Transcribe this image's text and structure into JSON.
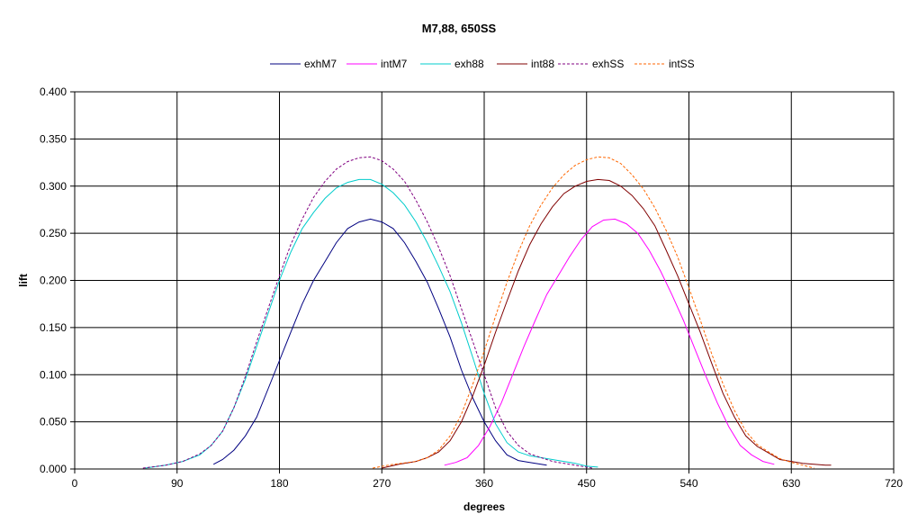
{
  "chart_data": {
    "type": "line",
    "title": "M7,88, 650SS",
    "xlabel": "degrees",
    "ylabel": "lift",
    "xlim": [
      0,
      720
    ],
    "ylim": [
      0,
      0.4
    ],
    "xticks": [
      0,
      90,
      180,
      270,
      360,
      450,
      540,
      630,
      720
    ],
    "xtick_labels": [
      "0",
      "90",
      "180",
      "270",
      "360",
      "450",
      "540",
      "630",
      "720"
    ],
    "yticks": [
      0,
      0.05,
      0.1,
      0.15,
      0.2,
      0.25,
      0.3,
      0.35,
      0.4
    ],
    "ytick_labels": [
      "0.000",
      "0.050",
      "0.100",
      "0.150",
      "0.200",
      "0.250",
      "0.300",
      "0.350",
      "0.400"
    ],
    "grid": true,
    "legend_position": "top",
    "series": [
      {
        "name": "exhM7",
        "color": "#000080",
        "dash": "solid",
        "points": [
          [
            122,
            0.005
          ],
          [
            130,
            0.01
          ],
          [
            140,
            0.02
          ],
          [
            150,
            0.035
          ],
          [
            160,
            0.055
          ],
          [
            170,
            0.085
          ],
          [
            180,
            0.115
          ],
          [
            190,
            0.145
          ],
          [
            200,
            0.175
          ],
          [
            210,
            0.2
          ],
          [
            220,
            0.22
          ],
          [
            230,
            0.24
          ],
          [
            240,
            0.255
          ],
          [
            250,
            0.262
          ],
          [
            260,
            0.265
          ],
          [
            270,
            0.262
          ],
          [
            280,
            0.255
          ],
          [
            290,
            0.24
          ],
          [
            300,
            0.22
          ],
          [
            310,
            0.198
          ],
          [
            320,
            0.17
          ],
          [
            330,
            0.14
          ],
          [
            340,
            0.105
          ],
          [
            350,
            0.075
          ],
          [
            360,
            0.05
          ],
          [
            370,
            0.03
          ],
          [
            380,
            0.015
          ],
          [
            390,
            0.009
          ],
          [
            400,
            0.007
          ],
          [
            410,
            0.005
          ],
          [
            415,
            0.004
          ]
        ]
      },
      {
        "name": "intM7",
        "color": "#FF00FF",
        "dash": "solid",
        "points": [
          [
            325,
            0.004
          ],
          [
            335,
            0.007
          ],
          [
            345,
            0.012
          ],
          [
            355,
            0.025
          ],
          [
            365,
            0.045
          ],
          [
            375,
            0.07
          ],
          [
            385,
            0.1
          ],
          [
            395,
            0.13
          ],
          [
            405,
            0.158
          ],
          [
            415,
            0.185
          ],
          [
            425,
            0.205
          ],
          [
            435,
            0.225
          ],
          [
            445,
            0.243
          ],
          [
            455,
            0.257
          ],
          [
            465,
            0.264
          ],
          [
            475,
            0.265
          ],
          [
            485,
            0.26
          ],
          [
            495,
            0.25
          ],
          [
            505,
            0.232
          ],
          [
            515,
            0.21
          ],
          [
            525,
            0.185
          ],
          [
            535,
            0.158
          ],
          [
            545,
            0.128
          ],
          [
            555,
            0.098
          ],
          [
            565,
            0.07
          ],
          [
            575,
            0.045
          ],
          [
            585,
            0.025
          ],
          [
            595,
            0.015
          ],
          [
            605,
            0.008
          ],
          [
            615,
            0.005
          ]
        ]
      },
      {
        "name": "exh88",
        "color": "#00CCCC",
        "dash": "solid",
        "points": [
          [
            62,
            0.001
          ],
          [
            80,
            0.004
          ],
          [
            95,
            0.008
          ],
          [
            110,
            0.015
          ],
          [
            120,
            0.025
          ],
          [
            130,
            0.04
          ],
          [
            140,
            0.065
          ],
          [
            150,
            0.095
          ],
          [
            160,
            0.13
          ],
          [
            170,
            0.165
          ],
          [
            180,
            0.2
          ],
          [
            190,
            0.23
          ],
          [
            200,
            0.255
          ],
          [
            210,
            0.272
          ],
          [
            220,
            0.287
          ],
          [
            230,
            0.298
          ],
          [
            240,
            0.304
          ],
          [
            250,
            0.307
          ],
          [
            260,
            0.307
          ],
          [
            270,
            0.302
          ],
          [
            280,
            0.293
          ],
          [
            290,
            0.28
          ],
          [
            300,
            0.262
          ],
          [
            310,
            0.24
          ],
          [
            320,
            0.215
          ],
          [
            330,
            0.188
          ],
          [
            340,
            0.155
          ],
          [
            350,
            0.118
          ],
          [
            360,
            0.08
          ],
          [
            370,
            0.048
          ],
          [
            380,
            0.028
          ],
          [
            390,
            0.018
          ],
          [
            400,
            0.014
          ],
          [
            410,
            0.012
          ],
          [
            420,
            0.01
          ],
          [
            430,
            0.008
          ],
          [
            440,
            0.006
          ],
          [
            450,
            0.003
          ],
          [
            460,
            0.002
          ]
        ]
      },
      {
        "name": "int88",
        "color": "#800000",
        "dash": "solid",
        "points": [
          [
            270,
            0.001
          ],
          [
            285,
            0.005
          ],
          [
            300,
            0.008
          ],
          [
            310,
            0.012
          ],
          [
            320,
            0.018
          ],
          [
            330,
            0.03
          ],
          [
            340,
            0.05
          ],
          [
            350,
            0.078
          ],
          [
            360,
            0.11
          ],
          [
            370,
            0.145
          ],
          [
            380,
            0.178
          ],
          [
            390,
            0.21
          ],
          [
            400,
            0.238
          ],
          [
            410,
            0.26
          ],
          [
            420,
            0.278
          ],
          [
            430,
            0.292
          ],
          [
            440,
            0.3
          ],
          [
            450,
            0.305
          ],
          [
            460,
            0.307
          ],
          [
            470,
            0.306
          ],
          [
            480,
            0.3
          ],
          [
            490,
            0.29
          ],
          [
            500,
            0.276
          ],
          [
            510,
            0.258
          ],
          [
            520,
            0.232
          ],
          [
            530,
            0.205
          ],
          [
            540,
            0.175
          ],
          [
            550,
            0.145
          ],
          [
            560,
            0.112
          ],
          [
            570,
            0.08
          ],
          [
            580,
            0.055
          ],
          [
            590,
            0.035
          ],
          [
            600,
            0.024
          ],
          [
            610,
            0.017
          ],
          [
            620,
            0.01
          ],
          [
            630,
            0.008
          ],
          [
            640,
            0.006
          ],
          [
            650,
            0.005
          ],
          [
            660,
            0.004
          ],
          [
            665,
            0.004
          ]
        ]
      },
      {
        "name": "exhSS",
        "color": "#800080",
        "dash": "dashed",
        "points": [
          [
            60,
            0.001
          ],
          [
            80,
            0.004
          ],
          [
            95,
            0.008
          ],
          [
            110,
            0.016
          ],
          [
            120,
            0.025
          ],
          [
            130,
            0.04
          ],
          [
            140,
            0.065
          ],
          [
            150,
            0.098
          ],
          [
            160,
            0.135
          ],
          [
            170,
            0.17
          ],
          [
            180,
            0.205
          ],
          [
            190,
            0.238
          ],
          [
            200,
            0.265
          ],
          [
            210,
            0.288
          ],
          [
            220,
            0.305
          ],
          [
            230,
            0.318
          ],
          [
            240,
            0.326
          ],
          [
            250,
            0.33
          ],
          [
            260,
            0.331
          ],
          [
            270,
            0.327
          ],
          [
            280,
            0.318
          ],
          [
            290,
            0.305
          ],
          [
            300,
            0.285
          ],
          [
            310,
            0.262
          ],
          [
            320,
            0.235
          ],
          [
            330,
            0.205
          ],
          [
            340,
            0.17
          ],
          [
            350,
            0.135
          ],
          [
            360,
            0.1
          ],
          [
            370,
            0.065
          ],
          [
            380,
            0.04
          ],
          [
            390,
            0.025
          ],
          [
            400,
            0.016
          ],
          [
            420,
            0.008
          ],
          [
            440,
            0.004
          ],
          [
            455,
            0.001
          ]
        ]
      },
      {
        "name": "intSS",
        "color": "#FF6600",
        "dash": "dashed",
        "points": [
          [
            262,
            0.001
          ],
          [
            280,
            0.005
          ],
          [
            300,
            0.008
          ],
          [
            310,
            0.012
          ],
          [
            320,
            0.02
          ],
          [
            330,
            0.035
          ],
          [
            340,
            0.058
          ],
          [
            350,
            0.09
          ],
          [
            360,
            0.125
          ],
          [
            370,
            0.162
          ],
          [
            380,
            0.198
          ],
          [
            390,
            0.23
          ],
          [
            400,
            0.258
          ],
          [
            410,
            0.28
          ],
          [
            420,
            0.298
          ],
          [
            430,
            0.312
          ],
          [
            440,
            0.322
          ],
          [
            450,
            0.328
          ],
          [
            460,
            0.331
          ],
          [
            470,
            0.33
          ],
          [
            480,
            0.324
          ],
          [
            490,
            0.312
          ],
          [
            500,
            0.297
          ],
          [
            510,
            0.277
          ],
          [
            520,
            0.253
          ],
          [
            530,
            0.225
          ],
          [
            540,
            0.192
          ],
          [
            550,
            0.158
          ],
          [
            560,
            0.122
          ],
          [
            570,
            0.09
          ],
          [
            580,
            0.062
          ],
          [
            590,
            0.04
          ],
          [
            600,
            0.026
          ],
          [
            610,
            0.018
          ],
          [
            620,
            0.011
          ],
          [
            630,
            0.007
          ],
          [
            640,
            0.004
          ],
          [
            650,
            0.001
          ]
        ]
      }
    ]
  }
}
